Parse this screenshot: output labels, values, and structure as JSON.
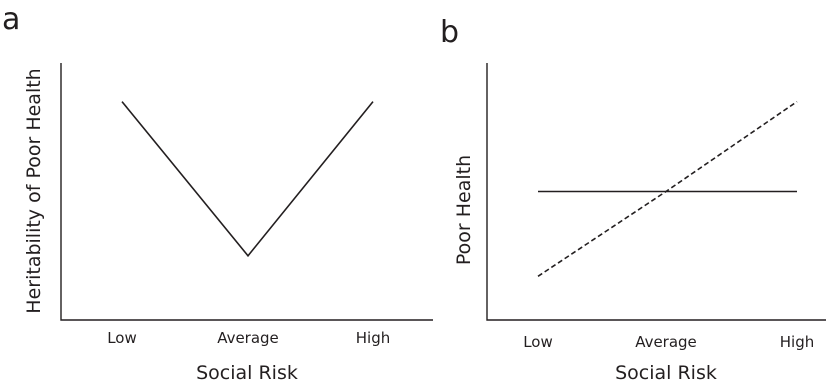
{
  "chart_data": [
    {
      "panel": "a",
      "type": "line",
      "xlabel": "Social Risk",
      "ylabel": "Heritability of Poor Health",
      "categories": [
        "Low",
        "Average",
        "High"
      ],
      "series": [
        {
          "values": [
            0.85,
            0.25,
            0.85
          ],
          "style": "solid",
          "color": "#231f20"
        }
      ],
      "ylim": [
        0,
        1
      ],
      "grid": false
    },
    {
      "panel": "b",
      "type": "line",
      "xlabel": "Social Risk",
      "ylabel": "Poor Health",
      "categories": [
        "Low",
        "Average",
        "High"
      ],
      "series": [
        {
          "values": [
            0.5,
            0.5,
            0.5
          ],
          "style": "solid",
          "color": "#231f20"
        },
        {
          "values": [
            0.17,
            0.5,
            0.85
          ],
          "style": "dashed",
          "color": "#231f20"
        }
      ],
      "ylim": [
        0,
        1
      ],
      "grid": false
    }
  ]
}
